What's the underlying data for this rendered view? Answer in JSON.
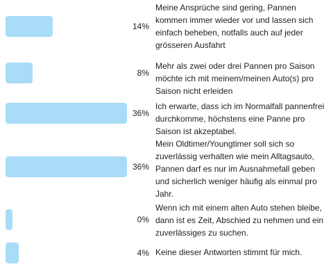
{
  "chart_data": {
    "type": "bar",
    "orientation": "horizontal",
    "bar_color": "#a8dcf7",
    "categories": [
      "Meine Ansprüche sind gering, Pannen kommen immer wieder vor und lassen sich einfach beheben, notfalls auch auf jeder grösseren Ausfahrt",
      "Mehr als zwei oder drei Pannen pro Saison möchte ich mit meinem/meinen Auto(s) pro Saison nicht erleiden",
      "Ich erwarte, dass ich im Normalfall pannenfrei durchkomme, höchstens eine Panne pro Saison ist akzeptabel.",
      "Mein Oldtimer/Youngtimer soll sich so zuverlässig verhalten wie mein Alltagsauto, Pannen darf es nur im Ausnahmefall geben und sicherlich weniger häufig als einmal pro Jahr.",
      "Wenn ich mit einem alten Auto stehen bleibe, dann ist es Zeit, Abschied zu nehmen und ein zuverlässiges zu suchen.",
      "Keine dieser Antworten stimmt für mich."
    ],
    "values": [
      14,
      8,
      36,
      36,
      0,
      4
    ],
    "value_labels": [
      "14%",
      "8%",
      "36%",
      "36%",
      "0%",
      "4%"
    ],
    "unit": "%"
  }
}
